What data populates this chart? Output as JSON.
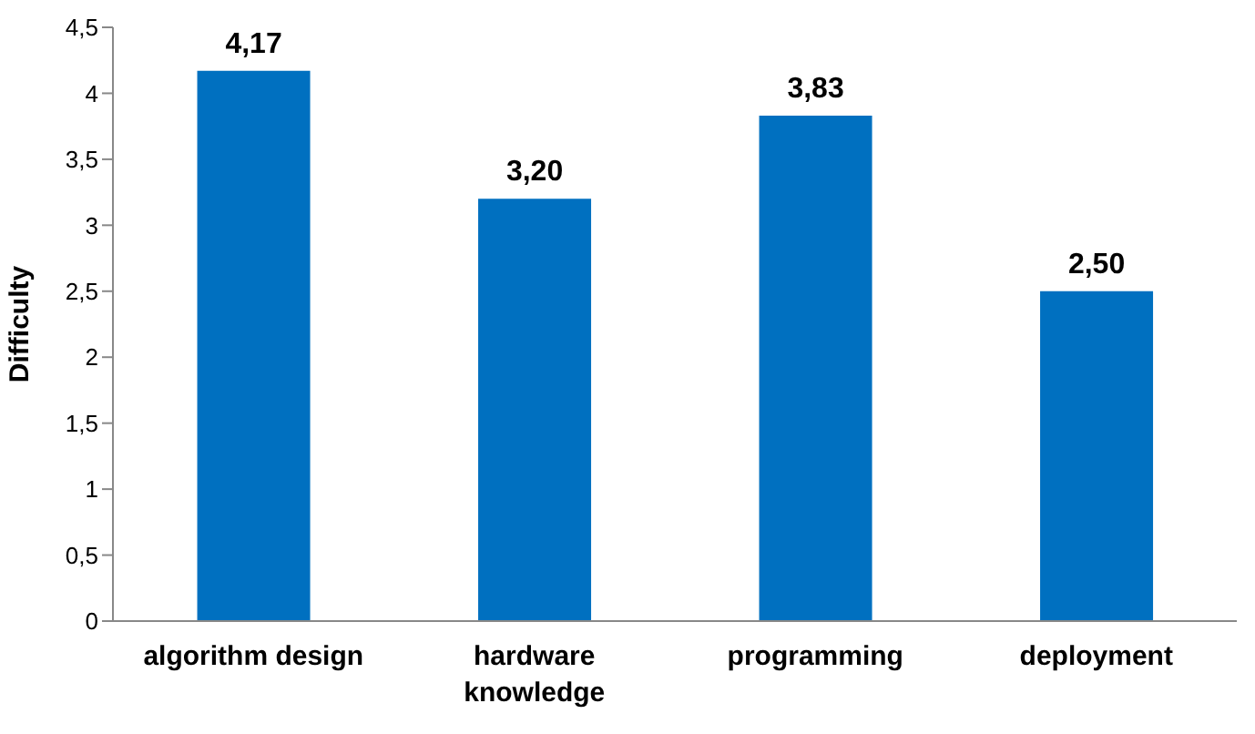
{
  "chart_data": {
    "type": "bar",
    "ylabel": "Difficulty",
    "categories": [
      "algorithm design",
      "hardware knowledge",
      "programming",
      "deployment"
    ],
    "values": [
      4.17,
      3.2,
      3.83,
      2.5
    ],
    "value_labels": [
      "4,17",
      "3,20",
      "3,83",
      "2,50"
    ],
    "color": "#0070c0",
    "ylim": [
      0,
      4.5
    ],
    "yticks": [
      0,
      {
        "value": 0.5,
        "label": "0,5"
      },
      1,
      {
        "value": 1.5,
        "label": "1,5"
      },
      2,
      {
        "value": 2.5,
        "label": "2,5"
      },
      3,
      {
        "value": 3.5,
        "label": "3,5"
      },
      4,
      {
        "value": 4.5,
        "label": "4,5"
      }
    ],
    "grid": false,
    "legend": false
  }
}
